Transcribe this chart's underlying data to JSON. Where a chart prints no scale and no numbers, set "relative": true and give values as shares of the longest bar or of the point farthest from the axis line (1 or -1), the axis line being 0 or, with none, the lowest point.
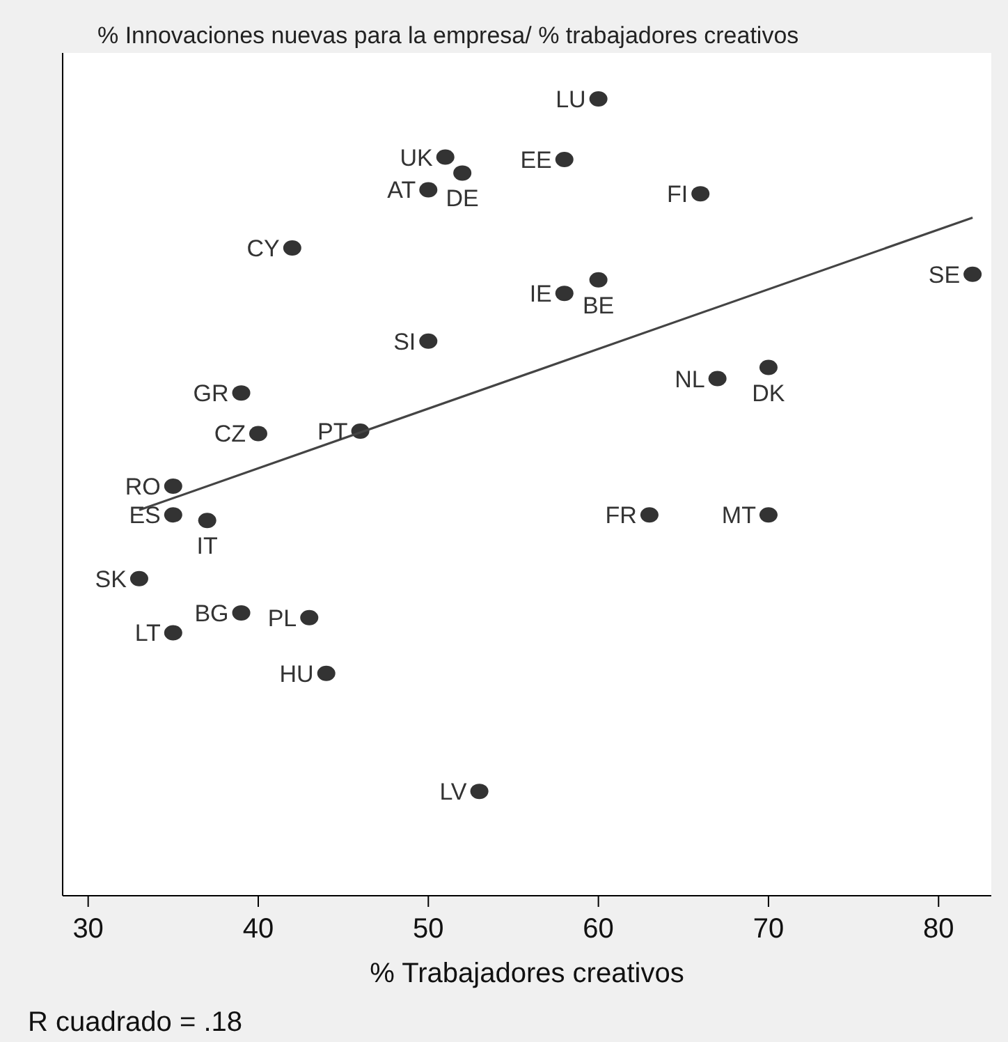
{
  "chart_data": {
    "type": "scatter",
    "relative": true,
    "ylabel": "% Innovaciones nuevas para la empresa/ % trabajadores creativos",
    "xlabel": "% Trabajadores creativos",
    "xlim": [
      28.5,
      83.1
    ],
    "xticks": [
      30,
      40,
      50,
      60,
      70,
      80
    ],
    "marker": "circle",
    "series": [
      {
        "color": "#333333",
        "x": [
          60,
          51,
          58,
          52,
          50,
          66,
          42,
          82,
          60,
          58,
          50,
          70,
          67,
          39,
          40,
          46,
          35,
          35,
          37,
          63,
          70,
          33,
          39,
          43,
          35,
          44,
          53
        ],
        "values": [
          1.0,
          0.927,
          0.924,
          0.907,
          0.886,
          0.881,
          0.813,
          0.78,
          0.773,
          0.756,
          0.696,
          0.663,
          0.649,
          0.631,
          0.58,
          0.583,
          0.514,
          0.478,
          0.471,
          0.478,
          0.478,
          0.398,
          0.355,
          0.349,
          0.33,
          0.279,
          0.131
        ]
      },
      {
        "type": "line",
        "marker": "none",
        "color": "#444444",
        "x": [
          33,
          82
        ],
        "values": [
          0.484,
          0.851
        ]
      }
    ],
    "annotations": [
      {
        "text": "LU",
        "x": 60,
        "y": 1.0
      },
      {
        "text": "UK",
        "x": 51,
        "y": 0.927
      },
      {
        "text": "EE",
        "x": 58,
        "y": 0.924
      },
      {
        "text": "DE",
        "x": 52,
        "y": 0.907
      },
      {
        "text": "AT",
        "x": 50,
        "y": 0.886
      },
      {
        "text": "FI",
        "x": 66,
        "y": 0.881
      },
      {
        "text": "CY",
        "x": 42,
        "y": 0.813
      },
      {
        "text": "SE",
        "x": 82,
        "y": 0.78
      },
      {
        "text": "BE",
        "x": 60,
        "y": 0.773
      },
      {
        "text": "IE",
        "x": 58,
        "y": 0.756
      },
      {
        "text": "SI",
        "x": 50,
        "y": 0.696
      },
      {
        "text": "DK",
        "x": 70,
        "y": 0.663
      },
      {
        "text": "NL",
        "x": 67,
        "y": 0.649
      },
      {
        "text": "GR",
        "x": 39,
        "y": 0.631
      },
      {
        "text": "CZ",
        "x": 40,
        "y": 0.58
      },
      {
        "text": "PT",
        "x": 46,
        "y": 0.583
      },
      {
        "text": "RO",
        "x": 35,
        "y": 0.514
      },
      {
        "text": "ES",
        "x": 35,
        "y": 0.478
      },
      {
        "text": "IT",
        "x": 37,
        "y": 0.471
      },
      {
        "text": "FR",
        "x": 63,
        "y": 0.478
      },
      {
        "text": "MT",
        "x": 70,
        "y": 0.478
      },
      {
        "text": "SK",
        "x": 33,
        "y": 0.398
      },
      {
        "text": "BG",
        "x": 39,
        "y": 0.355
      },
      {
        "text": "PL",
        "x": 43,
        "y": 0.349
      },
      {
        "text": "LT",
        "x": 35,
        "y": 0.33
      },
      {
        "text": "HU",
        "x": 44,
        "y": 0.279
      },
      {
        "text": "LV",
        "x": 53,
        "y": 0.131
      },
      "R cuadrado = .18"
    ]
  }
}
